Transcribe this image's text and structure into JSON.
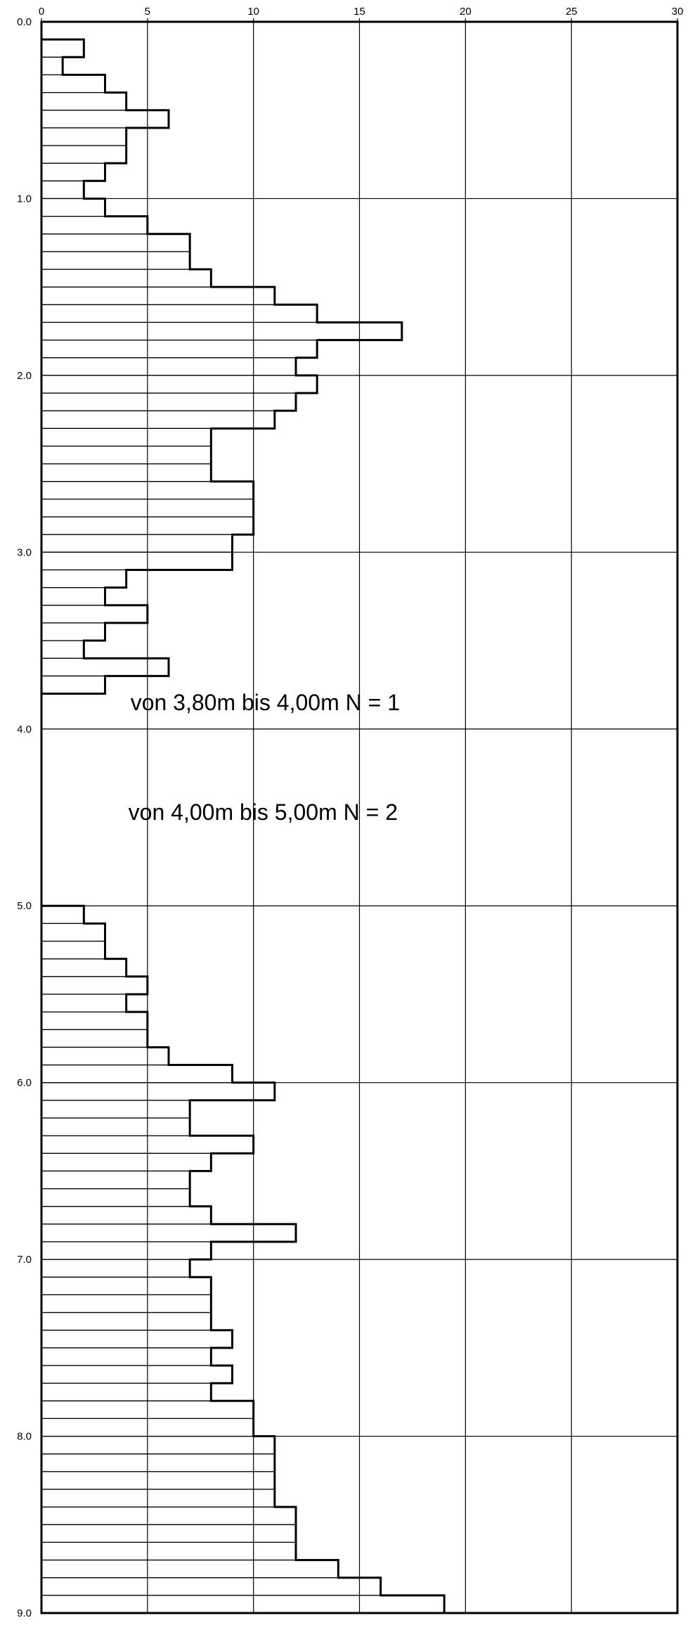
{
  "chart_data": {
    "type": "bar",
    "orientation": "horizontal",
    "step_outline": true,
    "title": "",
    "xlabel": "",
    "ylabel": "",
    "xlim": [
      0,
      30
    ],
    "ylim": [
      0.0,
      9.0
    ],
    "y_inverted": true,
    "grid": true,
    "x_ticks": [
      "0",
      "5",
      "10",
      "15",
      "20",
      "25",
      "30"
    ],
    "y_ticks": [
      "0.0",
      "1.0",
      "2.0",
      "3.0",
      "4.0",
      "5.0",
      "6.0",
      "7.0",
      "8.0",
      "9.0"
    ],
    "bin_width": 0.1,
    "depth_from": [
      0.1,
      0.2,
      0.3,
      0.4,
      0.5,
      0.6,
      0.7,
      0.8,
      0.9,
      1.0,
      1.1,
      1.2,
      1.3,
      1.4,
      1.5,
      1.6,
      1.7,
      1.8,
      1.9,
      2.0,
      2.1,
      2.2,
      2.3,
      2.4,
      2.5,
      2.6,
      2.7,
      2.8,
      2.9,
      3.0,
      3.1,
      3.2,
      3.3,
      3.4,
      3.5,
      3.6,
      3.7,
      5.0,
      5.1,
      5.2,
      5.3,
      5.4,
      5.5,
      5.6,
      5.7,
      5.8,
      5.9,
      6.0,
      6.1,
      6.2,
      6.3,
      6.4,
      6.5,
      6.6,
      6.7,
      6.8,
      6.9,
      7.0,
      7.1,
      7.2,
      7.3,
      7.4,
      7.5,
      7.6,
      7.7,
      7.8,
      7.9,
      8.0,
      8.1,
      8.2,
      8.3,
      8.4,
      8.5,
      8.6,
      8.7,
      8.8,
      8.9
    ],
    "values": [
      2,
      1,
      3,
      4,
      6,
      4,
      4,
      3,
      2,
      3,
      5,
      7,
      7,
      8,
      11,
      13,
      17,
      13,
      12,
      13,
      12,
      11,
      8,
      8,
      8,
      10,
      10,
      10,
      9,
      9,
      4,
      3,
      5,
      3,
      2,
      6,
      3,
      2,
      3,
      3,
      4,
      5,
      4,
      5,
      5,
      6,
      9,
      11,
      7,
      7,
      10,
      8,
      7,
      7,
      8,
      12,
      8,
      7,
      8,
      8,
      8,
      9,
      8,
      9,
      8,
      10,
      10,
      11,
      11,
      11,
      11,
      12,
      12,
      12,
      14,
      16,
      19
    ],
    "annotations": [
      "von 3,80m bis 4,00m N = 1",
      "von 4,00m bis 5,00m N = 2"
    ],
    "annotation_depths": [
      3.85,
      4.47
    ],
    "annotation_x": [
      4.2,
      4.1
    ]
  }
}
